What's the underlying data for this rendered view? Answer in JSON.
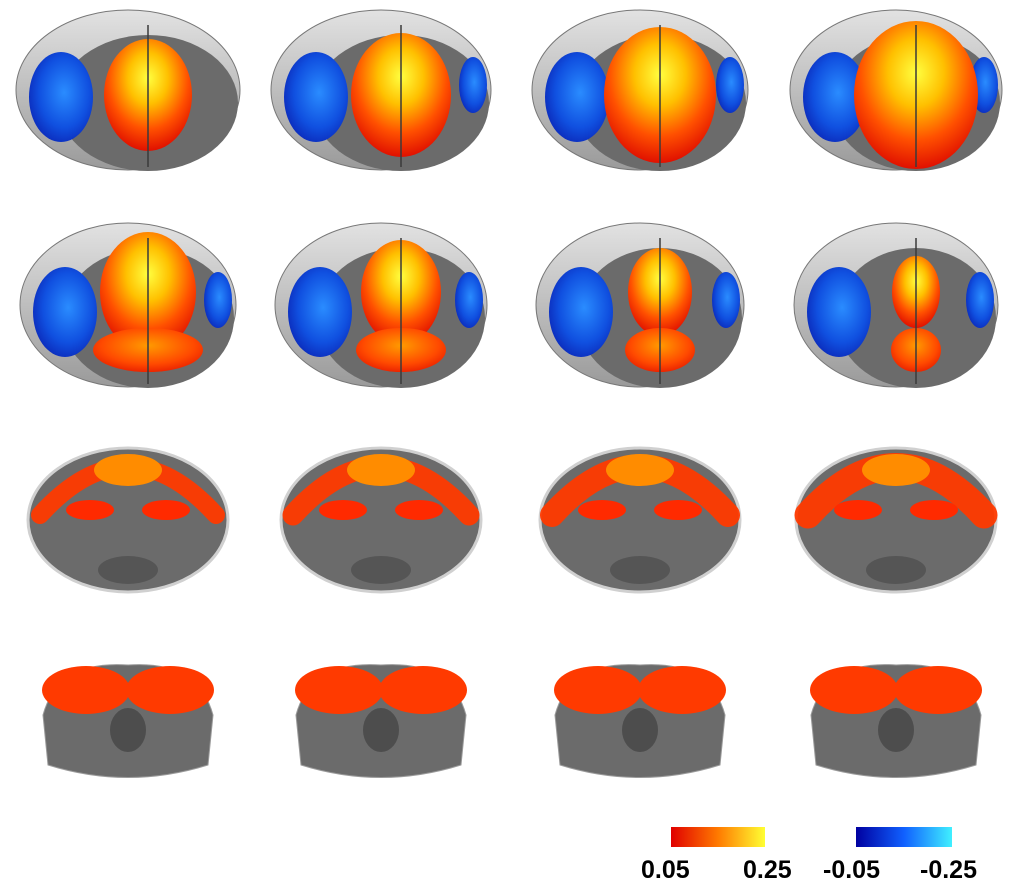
{
  "figure": {
    "panel_count": 16,
    "layout": "4 rows x 4 columns of coronal brain slices",
    "colors": {
      "background": "#ffffff",
      "brain_surface": "#b9b9b9",
      "brain_section": "#6b6b6b"
    }
  },
  "colorbars": {
    "positive": {
      "min_label": "0.05",
      "max_label": "0.25",
      "color_low": "#e00000",
      "color_mid": "#ff7a00",
      "color_high": "#ffff33"
    },
    "negative": {
      "min_label": "-0.05",
      "max_label": "-0.25",
      "color_low": "#0000a0",
      "color_mid": "#1060ff",
      "color_high": "#40f0ff"
    }
  }
}
